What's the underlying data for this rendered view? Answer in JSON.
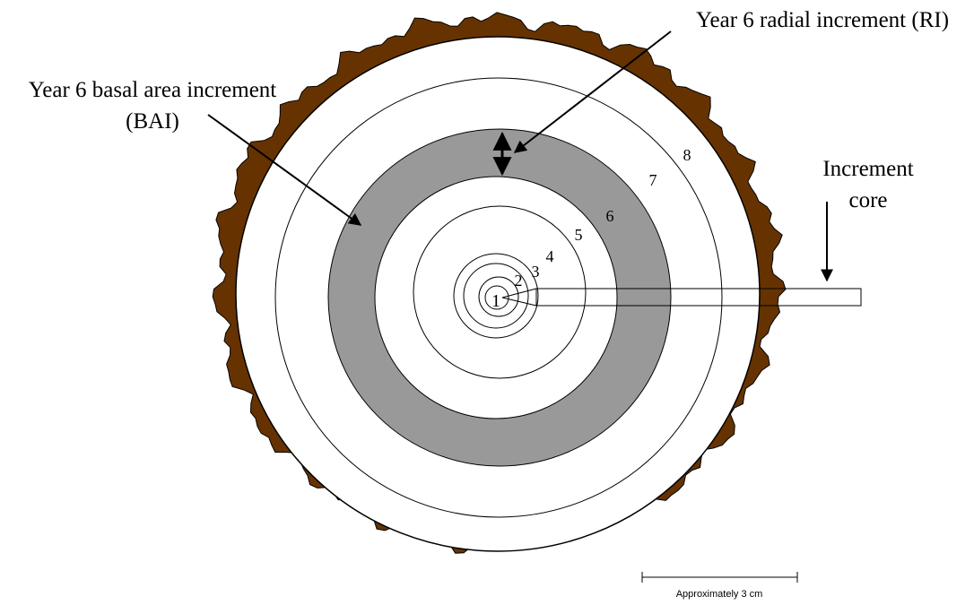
{
  "annotations": {
    "bai": [
      "Year 6 basal area increment",
      "(BAI)"
    ],
    "ri": "Year 6 radial increment (RI)",
    "core": [
      "Increment",
      "core"
    ]
  },
  "rings": [
    "1",
    "2",
    "3",
    "4",
    "5",
    "6",
    "7",
    "8"
  ],
  "scale_bar": "Approximately 3 cm"
}
